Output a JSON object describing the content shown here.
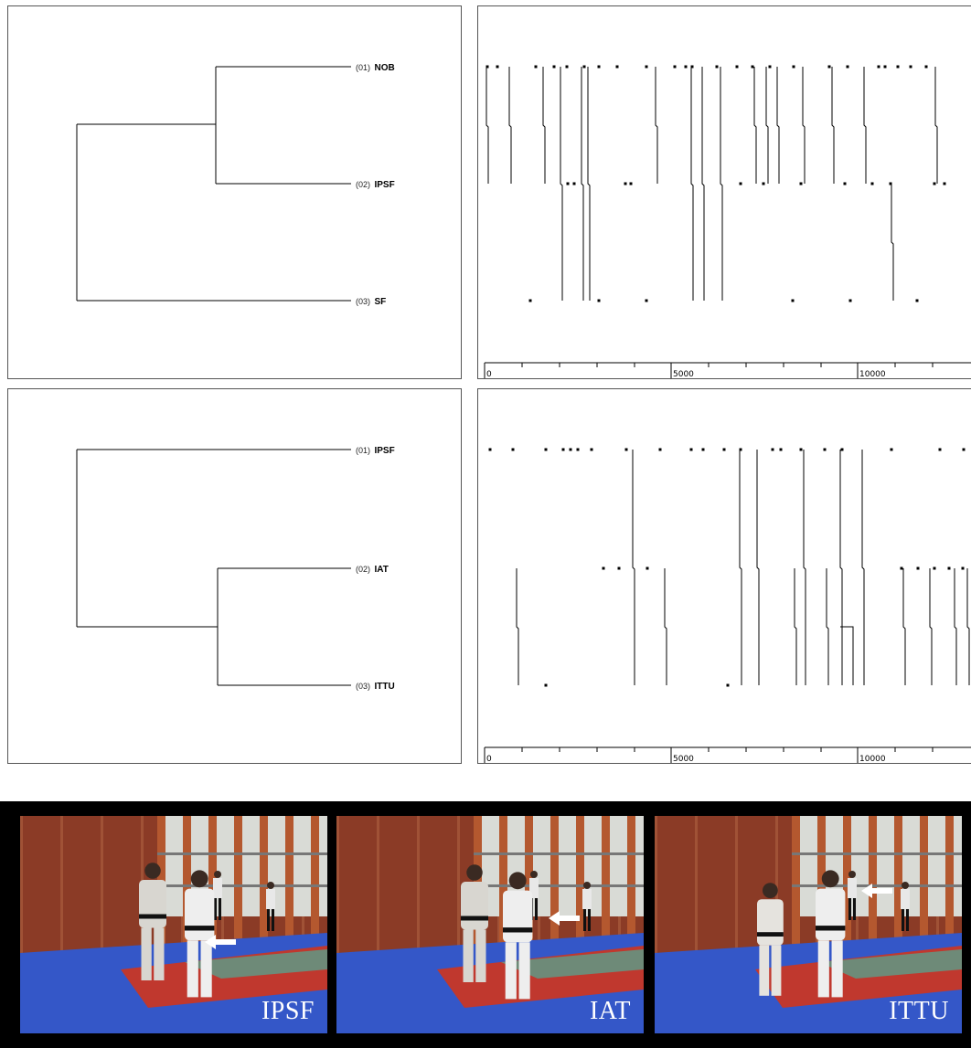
{
  "dendrogram_top": {
    "leaves": [
      {
        "num": "(01)",
        "name": "NOB"
      },
      {
        "num": "(02)",
        "name": "IPSF"
      },
      {
        "num": "(03)",
        "name": "SF"
      }
    ]
  },
  "dendrogram_bottom": {
    "leaves": [
      {
        "num": "(01)",
        "name": "IPSF"
      },
      {
        "num": "(02)",
        "name": "IAT"
      },
      {
        "num": "(03)",
        "name": "ITTU"
      }
    ]
  },
  "timeline_top": {
    "axis_ticks": [
      "0",
      "5000",
      "10000"
    ]
  },
  "timeline_bottom": {
    "axis_ticks": [
      "0",
      "5000",
      "10000"
    ]
  },
  "frames": [
    {
      "label": "IPSF",
      "arrow": "left-arrow-icon"
    },
    {
      "label": "IAT",
      "arrow": "left-arrow-icon"
    },
    {
      "label": "ITTU",
      "arrow": "left-arrow-icon"
    }
  ],
  "colors": {
    "line": "#000000",
    "mat_blue": "#3457c8",
    "wall": "#a84a2e",
    "mat_red": "#c0382e"
  }
}
